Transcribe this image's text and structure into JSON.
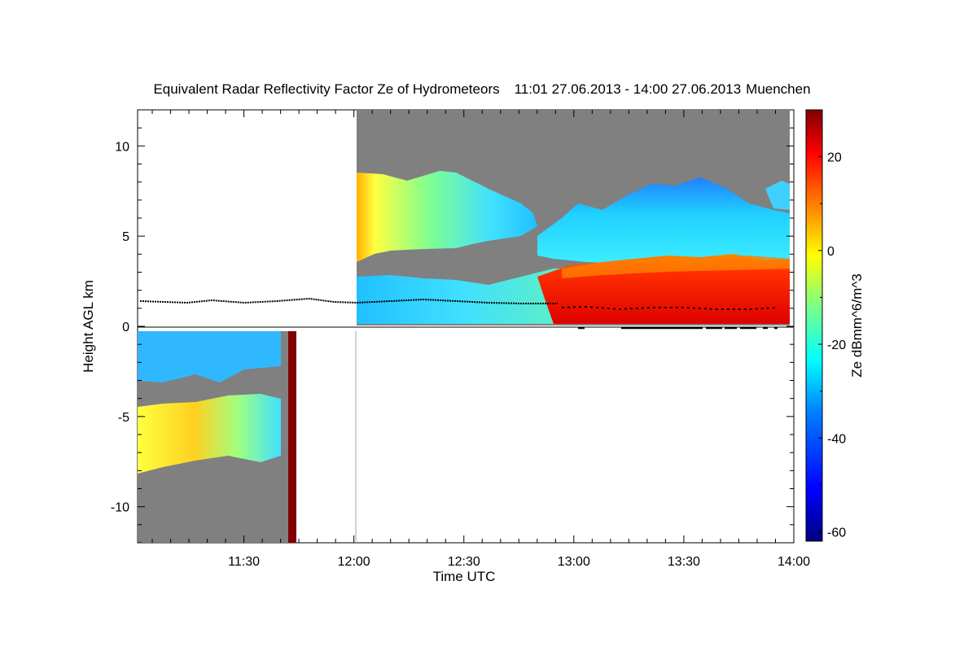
{
  "chart_data": {
    "type": "heatmap",
    "title": "Equivalent Radar Reflectivity Factor Ze of Hydrometeors",
    "time_range_label": "11:01 27.06.2013 - 14:00 27.06.2013",
    "location": "Muenchen",
    "xlabel": "Time UTC",
    "ylabel": "Height AGL km",
    "x_ticks": [
      "11:30",
      "12:00",
      "12:30",
      "13:00",
      "13:30",
      "14:00"
    ],
    "x_tick_minutes": [
      30,
      60,
      90,
      120,
      150,
      180
    ],
    "xlim_minutes_after_11_00": [
      1,
      180
    ],
    "y_ticks": [
      "10",
      "5",
      "0",
      "-5",
      "-10"
    ],
    "y_tick_values": [
      10,
      5,
      0,
      -5,
      -10
    ],
    "ylim": [
      -12,
      12
    ],
    "colorbar": {
      "label": "Ze dBmm^6/m^3",
      "ticks": [
        "20",
        "0",
        "-20",
        "-40",
        "-60"
      ],
      "tick_values": [
        20,
        0,
        -20,
        -40,
        -60
      ],
      "range": [
        -62,
        30
      ],
      "colors": [
        "#000080",
        "#0000ff",
        "#0080ff",
        "#00ffff",
        "#80ff80",
        "#ffff00",
        "#ff8000",
        "#ff0000",
        "#800000"
      ]
    },
    "no_data_color": "#808080",
    "cloud_base_height_km": 1.4
  }
}
